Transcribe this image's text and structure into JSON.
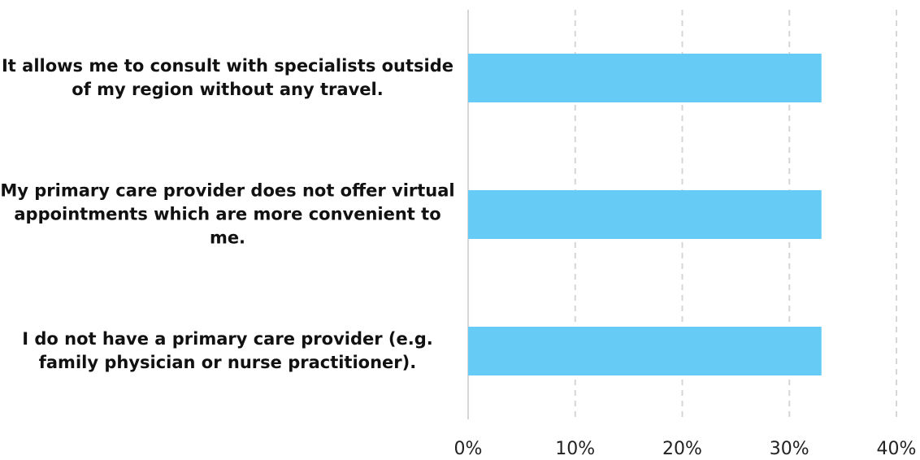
{
  "chart_data": {
    "type": "hbar",
    "categories": [
      "It allows me to consult with specialists outside of my region without any travel.",
      "My primary care provider does not offer virtual appointments which are more convenient to me.",
      "I do not have a primary care provider (e.g. family physician or nurse practitioner)."
    ],
    "values": [
      33,
      33,
      33
    ],
    "color": "#66ccf5",
    "xlim": [
      0,
      40
    ],
    "xticks": [
      {
        "value": 0,
        "label": "0%"
      },
      {
        "value": 10,
        "label": "10%"
      },
      {
        "value": 20,
        "label": "20%"
      },
      {
        "value": 30,
        "label": "30%"
      },
      {
        "value": 40,
        "label": "40%"
      }
    ],
    "grid": true
  }
}
